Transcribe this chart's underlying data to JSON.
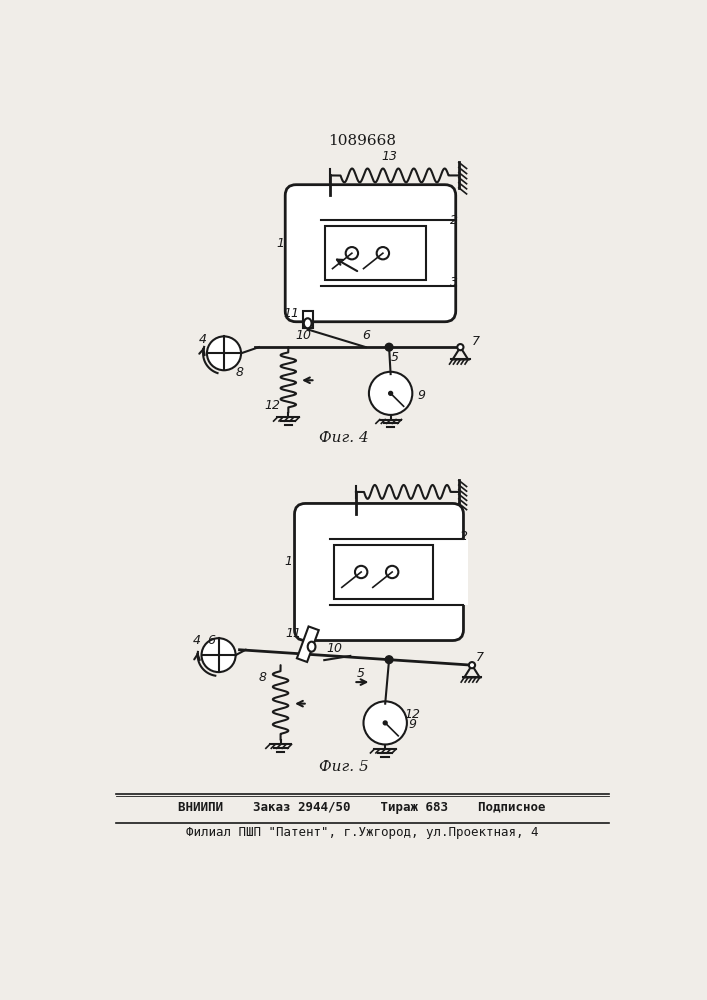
{
  "title": "1089668",
  "fig4_label": "Фиг. 4",
  "fig5_label": "Фиг. 5",
  "footer_line1": "ВНИИПИ    Заказ 2944/50    Тираж 683    Подписное",
  "footer_line2": "Филиал ПШП \"Патент\", г.Ужгород, ул.Проектная, 4",
  "bg_color": "#f0ede8",
  "line_color": "#1a1a1a",
  "line_width": 1.5
}
